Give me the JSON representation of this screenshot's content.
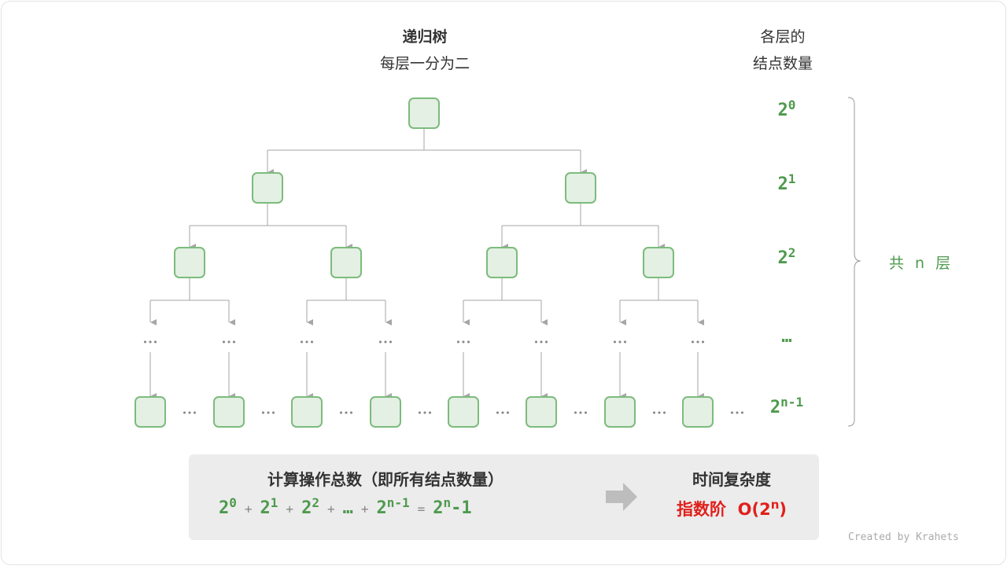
{
  "header": {
    "title": "递归树",
    "subtitle": "每层一分为二",
    "count_title_1": "各层的",
    "count_title_2": "结点数量"
  },
  "levels": [
    {
      "base": "2",
      "exp": "0"
    },
    {
      "base": "2",
      "exp": "1"
    },
    {
      "base": "2",
      "exp": "2"
    },
    {
      "base": "…",
      "exp": ""
    },
    {
      "base": "2",
      "exp": "n-1"
    }
  ],
  "total_levels": "共 n 层",
  "ellipsis": "•••",
  "panel": {
    "ops_title": "计算操作总数（即所有结点数量）",
    "terms": [
      {
        "base": "2",
        "exp": "0"
      },
      {
        "base": "2",
        "exp": "1"
      },
      {
        "base": "2",
        "exp": "2"
      },
      {
        "base": "…",
        "exp": ""
      },
      {
        "base": "2",
        "exp": "n-1"
      }
    ],
    "plus": "+",
    "equals": "=",
    "result_base": "2",
    "result_exp": "n",
    "result_tail": "-1",
    "complexity_title": "时间复杂度",
    "complexity_label": "指数阶",
    "complexity_prefix": "O(2",
    "complexity_exp": "n",
    "complexity_suffix": ")"
  },
  "credit": "Created by Krahets",
  "colors": {
    "node_fill": "#e3f0e3",
    "node_stroke": "#7dbb7d",
    "edge": "#a6a6a6",
    "accent_green": "#4e9a4e",
    "accent_red": "#e0201c"
  }
}
